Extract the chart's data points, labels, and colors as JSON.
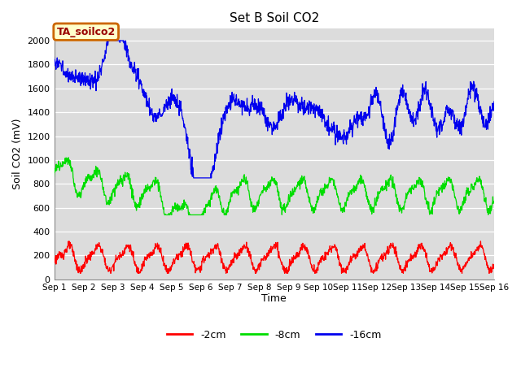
{
  "title": "Set B Soil CO2",
  "xlabel": "Time",
  "ylabel": "Soil CO2 (mV)",
  "ylim": [
    0,
    2100
  ],
  "xlim": [
    0,
    360
  ],
  "background_color": "#dcdcdc",
  "annotation_text": "TA_soilco2",
  "annotation_bg": "#ffffcc",
  "annotation_border": "#cc6600",
  "annotation_text_color": "#990000",
  "legend_labels": [
    "-2cm",
    "-8cm",
    "-16cm"
  ],
  "legend_colors": [
    "#ff0000",
    "#00dd00",
    "#0000ee"
  ],
  "xtick_labels": [
    "Sep 1",
    "Sep 2",
    "Sep 3",
    "Sep 4",
    "Sep 5",
    "Sep 6",
    "Sep 7",
    "Sep 8",
    "Sep 9",
    "Sep 10",
    "Sep 11",
    "Sep 12",
    "Sep 13",
    "Sep 14",
    "Sep 15",
    "Sep 16"
  ],
  "xtick_positions": [
    0,
    24,
    48,
    72,
    96,
    120,
    144,
    168,
    192,
    216,
    240,
    264,
    288,
    312,
    336,
    360
  ],
  "ytick_labels": [
    "0",
    "200",
    "400",
    "600",
    "800",
    "1000",
    "1200",
    "1400",
    "1600",
    "1800",
    "2000"
  ],
  "ytick_positions": [
    0,
    200,
    400,
    600,
    800,
    1000,
    1200,
    1400,
    1600,
    1800,
    2000
  ]
}
